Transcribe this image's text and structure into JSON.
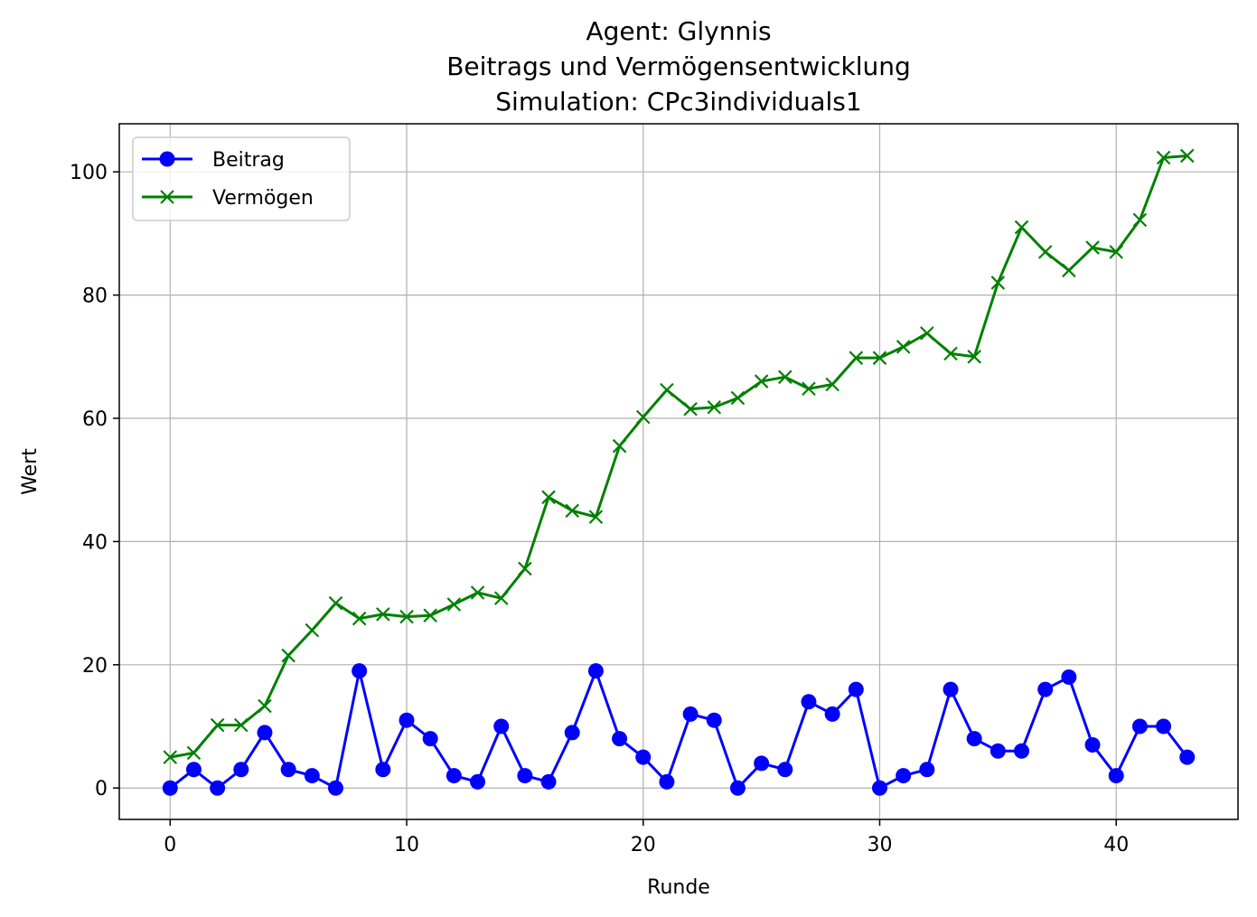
{
  "chart_data": {
    "type": "line",
    "title_lines": [
      "Agent: Glynnis",
      "Beitrags und Vermögensentwicklung",
      "Simulation: CPc3individuals1"
    ],
    "xlabel": "Runde",
    "ylabel": "Wert",
    "xlim": [
      -2.15,
      45.15
    ],
    "ylim": [
      -5.1,
      107.8
    ],
    "xticks": [
      0,
      10,
      20,
      30,
      40
    ],
    "yticks": [
      0,
      20,
      40,
      60,
      80,
      100
    ],
    "grid": true,
    "legend_position": "upper-left",
    "x": [
      0,
      1,
      2,
      3,
      4,
      5,
      6,
      7,
      8,
      9,
      10,
      11,
      12,
      13,
      14,
      15,
      16,
      17,
      18,
      19,
      20,
      21,
      22,
      23,
      24,
      25,
      26,
      27,
      28,
      29,
      30,
      31,
      32,
      33,
      34,
      35,
      36,
      37,
      38,
      39,
      40,
      41,
      42,
      43
    ],
    "series": [
      {
        "name": "Beitrag",
        "color": "#0000ff",
        "marker": "circle",
        "values": [
          0,
          3,
          0,
          3,
          9,
          3,
          2,
          0,
          19,
          3,
          11,
          8,
          2,
          1,
          10,
          2,
          1,
          9,
          19,
          8,
          5,
          1,
          12,
          11,
          0,
          4,
          3,
          14,
          12,
          16,
          0,
          2,
          3,
          16,
          8,
          6,
          6,
          16,
          18,
          7,
          2,
          10,
          10,
          5
        ]
      },
      {
        "name": "Vermögen",
        "color": "#008000",
        "marker": "x",
        "values": [
          5,
          5.7,
          10.2,
          10.2,
          13.3,
          21.5,
          25.6,
          30,
          27.5,
          28.2,
          27.8,
          28,
          29.8,
          31.7,
          30.8,
          35.6,
          47.2,
          45,
          44,
          55.5,
          60.2,
          64.6,
          61.5,
          61.8,
          63.3,
          66,
          66.7,
          64.8,
          65.5,
          69.8,
          69.8,
          71.6,
          73.8,
          70.5,
          70,
          82,
          91,
          87,
          84,
          87.7,
          87,
          92.2,
          102.3,
          102.6
        ]
      }
    ]
  }
}
